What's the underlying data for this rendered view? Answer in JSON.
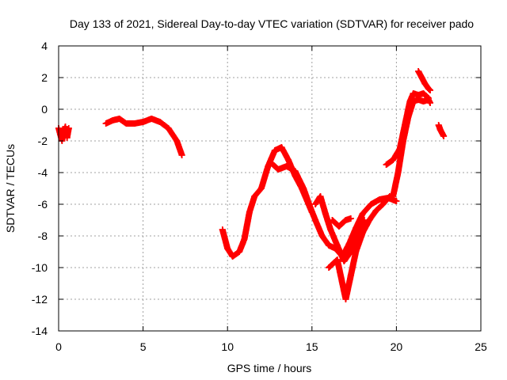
{
  "chart_data": {
    "type": "scatter",
    "title": "Day 133 of 2021, Sidereal Day-to-day VTEC variation (SDTVAR) for receiver pado",
    "xlabel": "GPS time / hours",
    "ylabel": "SDTVAR / TECUs",
    "xlim": [
      0,
      25
    ],
    "ylim": [
      -14,
      4
    ],
    "xticks": [
      0,
      5,
      10,
      15,
      20,
      25
    ],
    "yticks": [
      -14,
      -12,
      -10,
      -8,
      -6,
      -4,
      -2,
      0,
      2,
      4
    ],
    "xtick_labels": [
      "0",
      "5",
      "10",
      "15",
      "20",
      "25"
    ],
    "ytick_labels": [
      "-14",
      "-12",
      "-10",
      "-8",
      "-6",
      "-4",
      "-2",
      "0",
      "2",
      "4"
    ],
    "grid": true,
    "marker": "+",
    "color": "#ff0000",
    "series": [
      {
        "segments": [
          [
            [
              0.0,
              -1.2
            ],
            [
              0.1,
              -1.6
            ],
            [
              0.2,
              -2.0
            ],
            [
              0.3,
              -1.4
            ],
            [
              0.4,
              -1.1
            ],
            [
              0.5,
              -1.8
            ],
            [
              0.6,
              -1.2
            ]
          ],
          [
            [
              2.8,
              -0.9
            ],
            [
              3.2,
              -0.7
            ],
            [
              3.6,
              -0.6
            ],
            [
              4.0,
              -0.9
            ],
            [
              4.5,
              -0.9
            ],
            [
              5.0,
              -0.8
            ],
            [
              5.5,
              -0.6
            ],
            [
              6.0,
              -0.8
            ],
            [
              6.5,
              -1.2
            ],
            [
              7.0,
              -2.0
            ],
            [
              7.3,
              -2.9
            ]
          ],
          [
            [
              9.7,
              -7.6
            ],
            [
              10.0,
              -8.8
            ],
            [
              10.3,
              -9.3
            ],
            [
              10.7,
              -9.0
            ],
            [
              11.0,
              -8.2
            ],
            [
              11.3,
              -6.5
            ],
            [
              11.6,
              -5.5
            ],
            [
              12.0,
              -5.0
            ],
            [
              12.4,
              -3.6
            ],
            [
              12.8,
              -2.6
            ],
            [
              13.2,
              -2.4
            ],
            [
              13.6,
              -3.2
            ],
            [
              14.0,
              -4.2
            ],
            [
              14.4,
              -5.0
            ],
            [
              14.8,
              -6.0
            ],
            [
              15.0,
              -6.5
            ]
          ],
          [
            [
              12.6,
              -3.4
            ],
            [
              13.0,
              -3.8
            ],
            [
              13.5,
              -3.6
            ],
            [
              14.0,
              -3.9
            ],
            [
              14.5,
              -5.0
            ],
            [
              14.9,
              -6.2
            ],
            [
              15.2,
              -7.0
            ],
            [
              15.6,
              -8.0
            ],
            [
              16.0,
              -8.6
            ],
            [
              16.4,
              -8.8
            ],
            [
              16.8,
              -9.3
            ],
            [
              17.2,
              -8.5
            ],
            [
              17.6,
              -7.5
            ],
            [
              18.0,
              -6.6
            ],
            [
              18.5,
              -6.0
            ],
            [
              19.0,
              -5.7
            ],
            [
              19.5,
              -5.6
            ],
            [
              20.0,
              -5.8
            ]
          ],
          [
            [
              15.2,
              -6.0
            ],
            [
              15.5,
              -5.5
            ],
            [
              15.8,
              -6.6
            ],
            [
              16.1,
              -7.6
            ],
            [
              16.5,
              -8.6
            ],
            [
              16.9,
              -9.6
            ],
            [
              17.3,
              -9.0
            ],
            [
              17.7,
              -8.0
            ],
            [
              18.1,
              -7.0
            ]
          ],
          [
            [
              16.0,
              -10.0
            ],
            [
              16.5,
              -9.5
            ],
            [
              17.0,
              -12.0
            ],
            [
              17.3,
              -10.5
            ],
            [
              17.6,
              -9.0
            ],
            [
              18.0,
              -7.8
            ],
            [
              18.4,
              -7.0
            ],
            [
              18.8,
              -6.4
            ],
            [
              19.2,
              -6.0
            ],
            [
              19.6,
              -5.5
            ]
          ],
          [
            [
              16.2,
              -7.0
            ],
            [
              16.6,
              -7.4
            ],
            [
              17.0,
              -7.0
            ],
            [
              17.3,
              -6.9
            ]
          ],
          [
            [
              19.4,
              -3.5
            ],
            [
              19.8,
              -3.2
            ],
            [
              20.2,
              -2.5
            ],
            [
              20.5,
              -1.0
            ],
            [
              20.8,
              0.5
            ],
            [
              21.0,
              1.0
            ],
            [
              21.3,
              0.9
            ],
            [
              21.6,
              1.0
            ],
            [
              21.9,
              0.7
            ]
          ],
          [
            [
              19.8,
              -5.5
            ],
            [
              20.1,
              -4.0
            ],
            [
              20.4,
              -2.0
            ],
            [
              20.7,
              -0.5
            ],
            [
              21.0,
              0.5
            ],
            [
              21.3,
              0.6
            ],
            [
              21.6,
              0.5
            ],
            [
              21.9,
              0.6
            ],
            [
              22.0,
              0.4
            ]
          ],
          [
            [
              21.3,
              2.4
            ],
            [
              21.5,
              2.0
            ],
            [
              21.7,
              1.6
            ],
            [
              21.9,
              1.3
            ],
            [
              22.0,
              1.2
            ]
          ],
          [
            [
              22.5,
              -1.0
            ],
            [
              22.6,
              -1.3
            ],
            [
              22.7,
              -1.5
            ],
            [
              22.8,
              -1.7
            ]
          ]
        ]
      }
    ]
  }
}
